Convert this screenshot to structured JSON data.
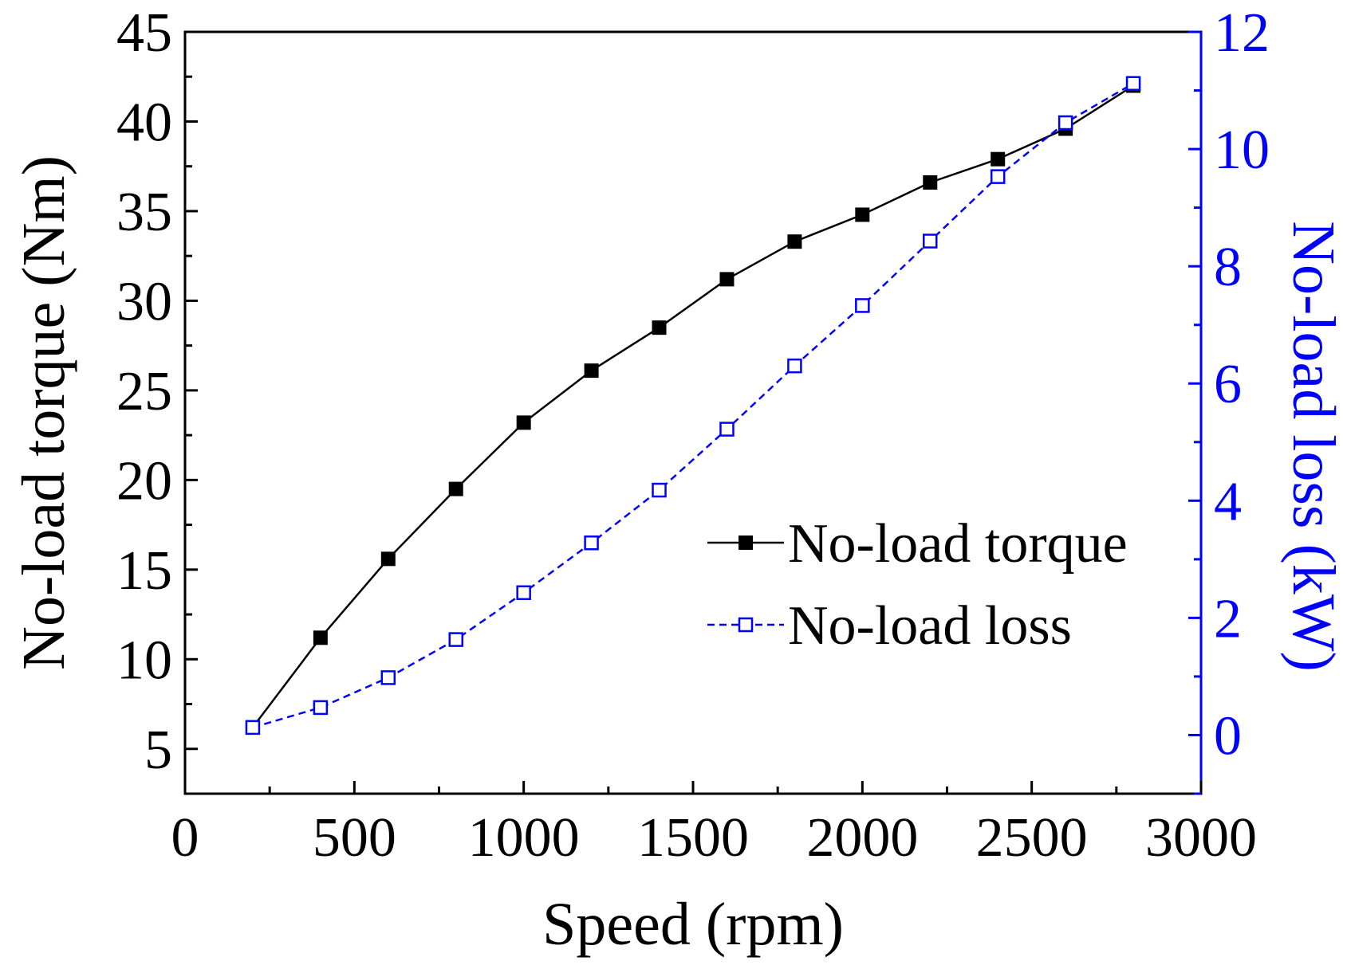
{
  "chart_data": {
    "type": "line",
    "title": "",
    "x": [
      200,
      400,
      600,
      800,
      1000,
      1200,
      1400,
      1600,
      1800,
      2000,
      2200,
      2400,
      2600,
      2800
    ],
    "xlabel": "Speed (rpm)",
    "xlim": [
      0,
      3000
    ],
    "xticks": [
      0,
      500,
      1000,
      1500,
      2000,
      2500,
      3000
    ],
    "xtick_labels": [
      "0",
      "500",
      "1000",
      "1500",
      "2000",
      "2500",
      "3000"
    ],
    "y_left": {
      "label": "No-load torque (Nm)",
      "lim": [
        2.5,
        45
      ],
      "ticks": [
        5,
        10,
        15,
        20,
        25,
        30,
        35,
        40,
        45
      ],
      "tick_labels": [
        "5",
        "10",
        "15",
        "20",
        "25",
        "30",
        "35",
        "40",
        "45"
      ],
      "color": "#000000"
    },
    "y_right": {
      "label": "No-load loss (kW)",
      "lim": [
        -1,
        12
      ],
      "ticks": [
        0,
        2,
        4,
        6,
        8,
        10,
        12
      ],
      "tick_labels": [
        "0",
        "2",
        "4",
        "6",
        "8",
        "10",
        "12"
      ],
      "color": "#0000ff"
    },
    "series": [
      {
        "name": "No-load torque",
        "axis": "left",
        "color": "#000000",
        "marker": "filled-square",
        "line": "solid",
        "values": [
          6.2,
          11.2,
          15.6,
          19.5,
          23.2,
          26.1,
          28.5,
          31.2,
          33.3,
          34.8,
          36.6,
          37.9,
          39.6,
          42.0
        ]
      },
      {
        "name": "No-load loss",
        "axis": "right",
        "color": "#0000ff",
        "marker": "open-square",
        "line": "dashed",
        "values": [
          0.13,
          0.47,
          0.98,
          1.63,
          2.43,
          3.28,
          4.18,
          5.22,
          6.3,
          7.33,
          8.43,
          9.53,
          10.45,
          11.12
        ]
      }
    ],
    "legend": {
      "position": "center-right",
      "entries": [
        "No-load torque",
        "No-load loss"
      ]
    },
    "grid": false
  }
}
